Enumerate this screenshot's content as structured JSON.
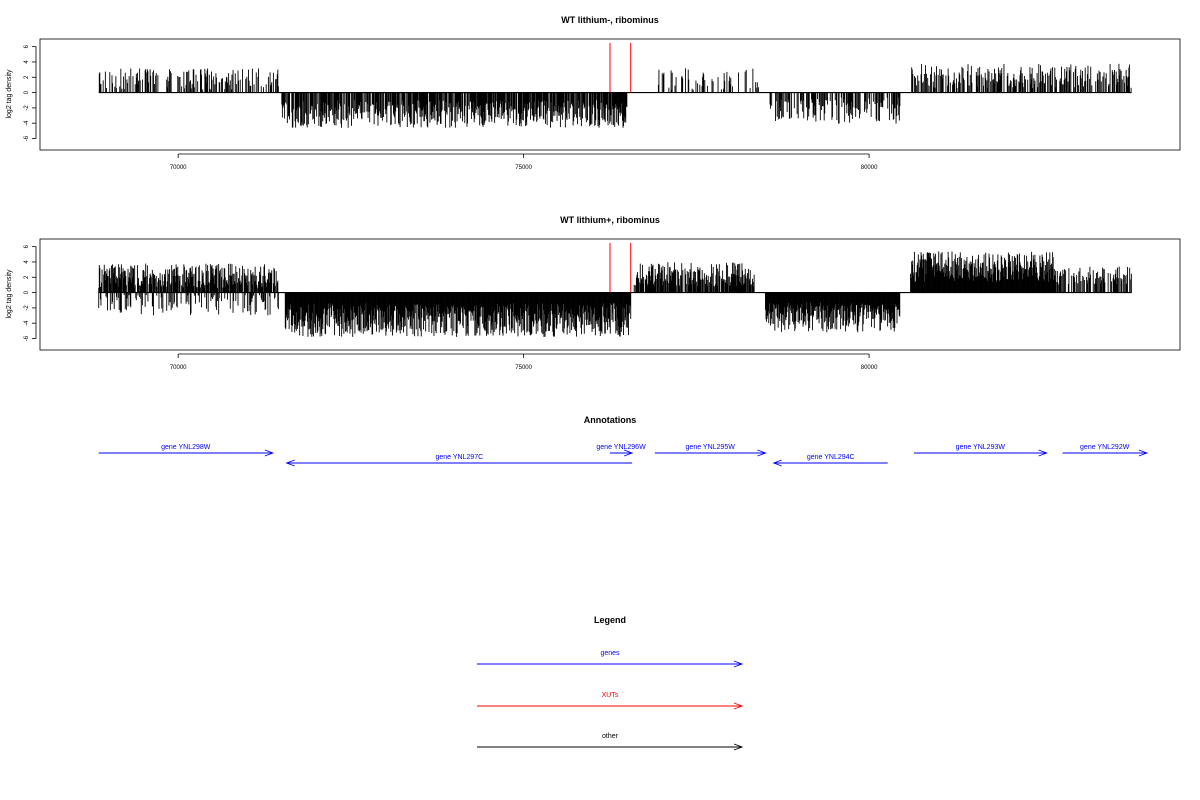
{
  "chart_data": [
    {
      "type": "bar",
      "title": "WT lithium-, ribominus",
      "ylabel": "log2 tag density",
      "xlim": [
        68000,
        84500
      ],
      "ylim": [
        -7.5,
        7
      ],
      "yticks": [
        -6,
        -4,
        -2,
        0,
        2,
        4,
        6
      ],
      "xticks": [
        70000,
        75000,
        80000
      ],
      "xtick_labels": [
        "70000",
        "75000",
        "80000"
      ],
      "baseline": [
        68850,
        83800
      ],
      "xut_markers": [
        76250,
        76550
      ],
      "segments": [
        {
          "x0": 68850,
          "x1": 71450,
          "sign": 1,
          "density": 0.4,
          "mean": 1.8,
          "amp": 1.4
        },
        {
          "x0": 71500,
          "x1": 76150,
          "sign": -1,
          "density": 0.75,
          "mean": 2.8,
          "amp": 1.8
        },
        {
          "x0": 76150,
          "x1": 76500,
          "sign": -1,
          "density": 0.9,
          "mean": 3.0,
          "amp": 1.6
        },
        {
          "x0": 76950,
          "x1": 78400,
          "sign": 1,
          "density": 0.25,
          "mean": 1.6,
          "amp": 1.6
        },
        {
          "x0": 78550,
          "x1": 80450,
          "sign": -1,
          "density": 0.55,
          "mean": 2.4,
          "amp": 1.8
        },
        {
          "x0": 80600,
          "x1": 83800,
          "sign": 1,
          "density": 0.55,
          "mean": 2.2,
          "amp": 1.6
        }
      ]
    },
    {
      "type": "bar",
      "title": "WT lithium+, ribominus",
      "ylabel": "log2 tag density",
      "xlim": [
        68000,
        84500
      ],
      "ylim": [
        -7.5,
        7
      ],
      "yticks": [
        -6,
        -4,
        -2,
        0,
        2,
        4,
        6
      ],
      "xticks": [
        70000,
        75000,
        80000
      ],
      "xtick_labels": [
        "70000",
        "75000",
        "80000"
      ],
      "baseline": [
        68850,
        83800
      ],
      "xut_markers": [
        76250,
        76550
      ],
      "segments": [
        {
          "x0": 68850,
          "x1": 71450,
          "sign": 1,
          "density": 0.85,
          "mean": 2.2,
          "amp": 1.6
        },
        {
          "x0": 68850,
          "x1": 71450,
          "sign": -1,
          "density": 0.35,
          "mean": 1.6,
          "amp": 1.4
        },
        {
          "x0": 71550,
          "x1": 76550,
          "sign": -1,
          "density": 1.0,
          "mean": 3.6,
          "amp": 2.2
        },
        {
          "x0": 76600,
          "x1": 78350,
          "sign": 1,
          "density": 0.85,
          "mean": 2.4,
          "amp": 1.6
        },
        {
          "x0": 78500,
          "x1": 80450,
          "sign": -1,
          "density": 1.0,
          "mean": 3.2,
          "amp": 2.0
        },
        {
          "x0": 80600,
          "x1": 82700,
          "sign": 1,
          "density": 1.0,
          "mean": 3.4,
          "amp": 2.0
        },
        {
          "x0": 82700,
          "x1": 83800,
          "sign": 1,
          "density": 0.6,
          "mean": 2.2,
          "amp": 1.2
        }
      ]
    }
  ],
  "annotations": {
    "title": "Annotations",
    "genes": [
      {
        "label": "gene YNL298W",
        "x0": 68850,
        "x1": 71370,
        "strand": "+",
        "row": 0
      },
      {
        "label": "gene YNL297C",
        "x0": 71570,
        "x1": 76570,
        "strand": "-",
        "row": 1
      },
      {
        "label": "gene YNL296W",
        "x0": 76250,
        "x1": 76570,
        "strand": "+",
        "row": 0
      },
      {
        "label": "gene YNL295W",
        "x0": 76900,
        "x1": 78500,
        "strand": "+",
        "row": 0
      },
      {
        "label": "gene YNL294C",
        "x0": 78620,
        "x1": 80270,
        "strand": "-",
        "row": 1
      },
      {
        "label": "gene YNL293W",
        "x0": 80650,
        "x1": 82570,
        "strand": "+",
        "row": 0
      },
      {
        "label": "gene YNL292W",
        "x0": 82800,
        "x1": 84020,
        "strand": "+",
        "row": 0
      }
    ]
  },
  "legend": {
    "title": "Legend",
    "items": [
      {
        "label": "genes",
        "color": "#0000ff"
      },
      {
        "label": "XUTs",
        "color": "#ff0000"
      },
      {
        "label": "other",
        "color": "#000000"
      }
    ]
  },
  "colors": {
    "genes": "#0000ff",
    "xuts": "#ff0000",
    "data": "#000000",
    "frame": "#000000"
  }
}
